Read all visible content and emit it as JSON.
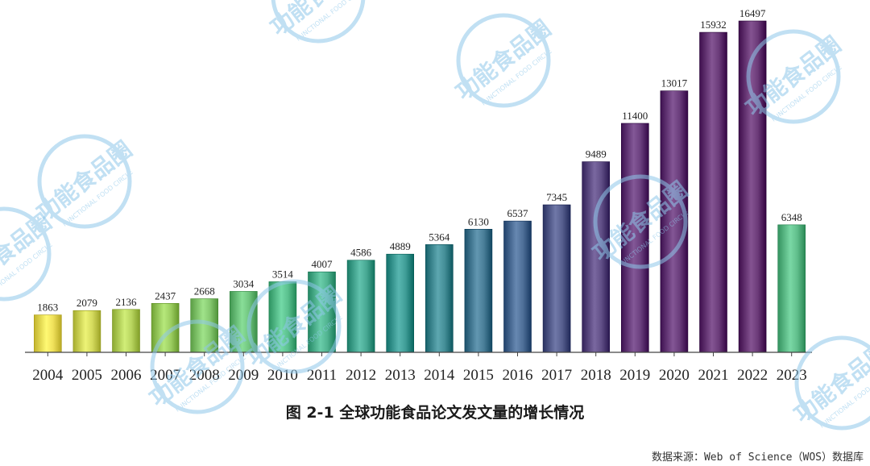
{
  "chart_data": {
    "type": "bar",
    "categories": [
      "2004",
      "2005",
      "2006",
      "2007",
      "2008",
      "2009",
      "2010",
      "2011",
      "2012",
      "2013",
      "2014",
      "2015",
      "2016",
      "2017",
      "2018",
      "2019",
      "2020",
      "2021",
      "2022",
      "2023"
    ],
    "values": [
      1863,
      2079,
      2136,
      2437,
      2668,
      3034,
      3514,
      4007,
      4586,
      4889,
      5364,
      6130,
      6537,
      7345,
      9489,
      11400,
      13017,
      15932,
      16497,
      6348
    ],
    "title": "图 2-1 全球功能食品论文发文量的增长情况",
    "xlabel": "",
    "ylabel": "",
    "ylim": [
      0,
      17000
    ],
    "grid": false,
    "legend": "none",
    "colors": {
      "bar_stops": [
        "#efe05a",
        "#9dcf62",
        "#5ac08e",
        "#3f9d97",
        "#4e6f98",
        "#6a3f7e",
        "#6b3a78"
      ],
      "last_bar": "#61bf8c",
      "axis": "#444444"
    }
  },
  "source_note": "数据来源：Web of Science（WOS）数据库",
  "watermark": {
    "icon": "functional-food-circle-logo",
    "text_cn": "功能食品圈",
    "text_en": "FUNCTIONAL FOOD CIRCLE",
    "color": "#8fc8ea"
  }
}
